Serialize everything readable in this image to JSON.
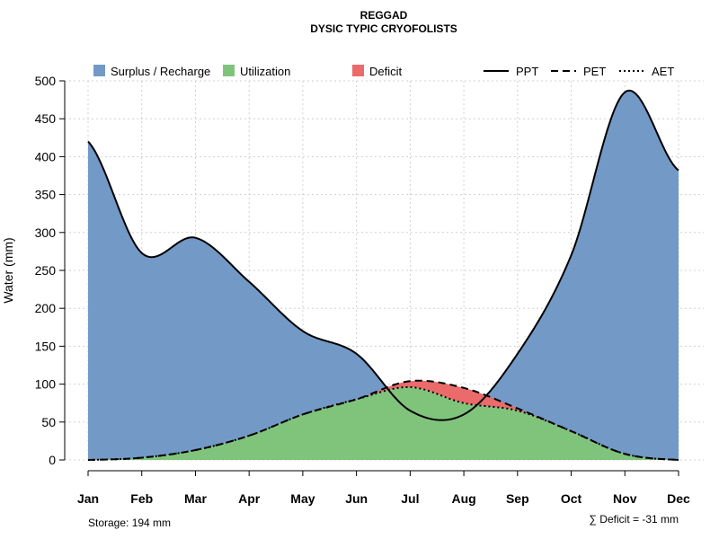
{
  "chart_data": {
    "type": "area",
    "title": "REGGAD",
    "subtitle": "DYSIC TYPIC CRYOFOLISTS",
    "xlabel": "",
    "ylabel": "Water (mm)",
    "ylim": [
      0,
      500
    ],
    "yticks": [
      0,
      50,
      100,
      150,
      200,
      250,
      300,
      350,
      400,
      450,
      500
    ],
    "grid": true,
    "categories": [
      "Jan",
      "Feb",
      "Mar",
      "Apr",
      "May",
      "Jun",
      "Jul",
      "Aug",
      "Sep",
      "Oct",
      "Nov",
      "Dec"
    ],
    "series": [
      {
        "name": "PPT",
        "line": "solid",
        "values": [
          420,
          273,
          293,
          235,
          170,
          140,
          65,
          60,
          140,
          270,
          485,
          382
        ]
      },
      {
        "name": "PET",
        "line": "dashed",
        "values": [
          0,
          3,
          13,
          32,
          60,
          80,
          104,
          95,
          68,
          38,
          8,
          0
        ]
      },
      {
        "name": "AET",
        "line": "dotted",
        "values": [
          0,
          3,
          13,
          32,
          60,
          80,
          96,
          75,
          65,
          38,
          8,
          0
        ]
      }
    ],
    "fills": [
      {
        "name": "Surplus / Recharge",
        "color": "#7399C6"
      },
      {
        "name": "Utilization",
        "color": "#80C47C"
      },
      {
        "name": "Deficit",
        "color": "#EB6A6A"
      }
    ],
    "legend_position": "top",
    "storage_text": "Storage: 194 mm",
    "deficit_text": "∑ Deficit = -31 mm"
  }
}
